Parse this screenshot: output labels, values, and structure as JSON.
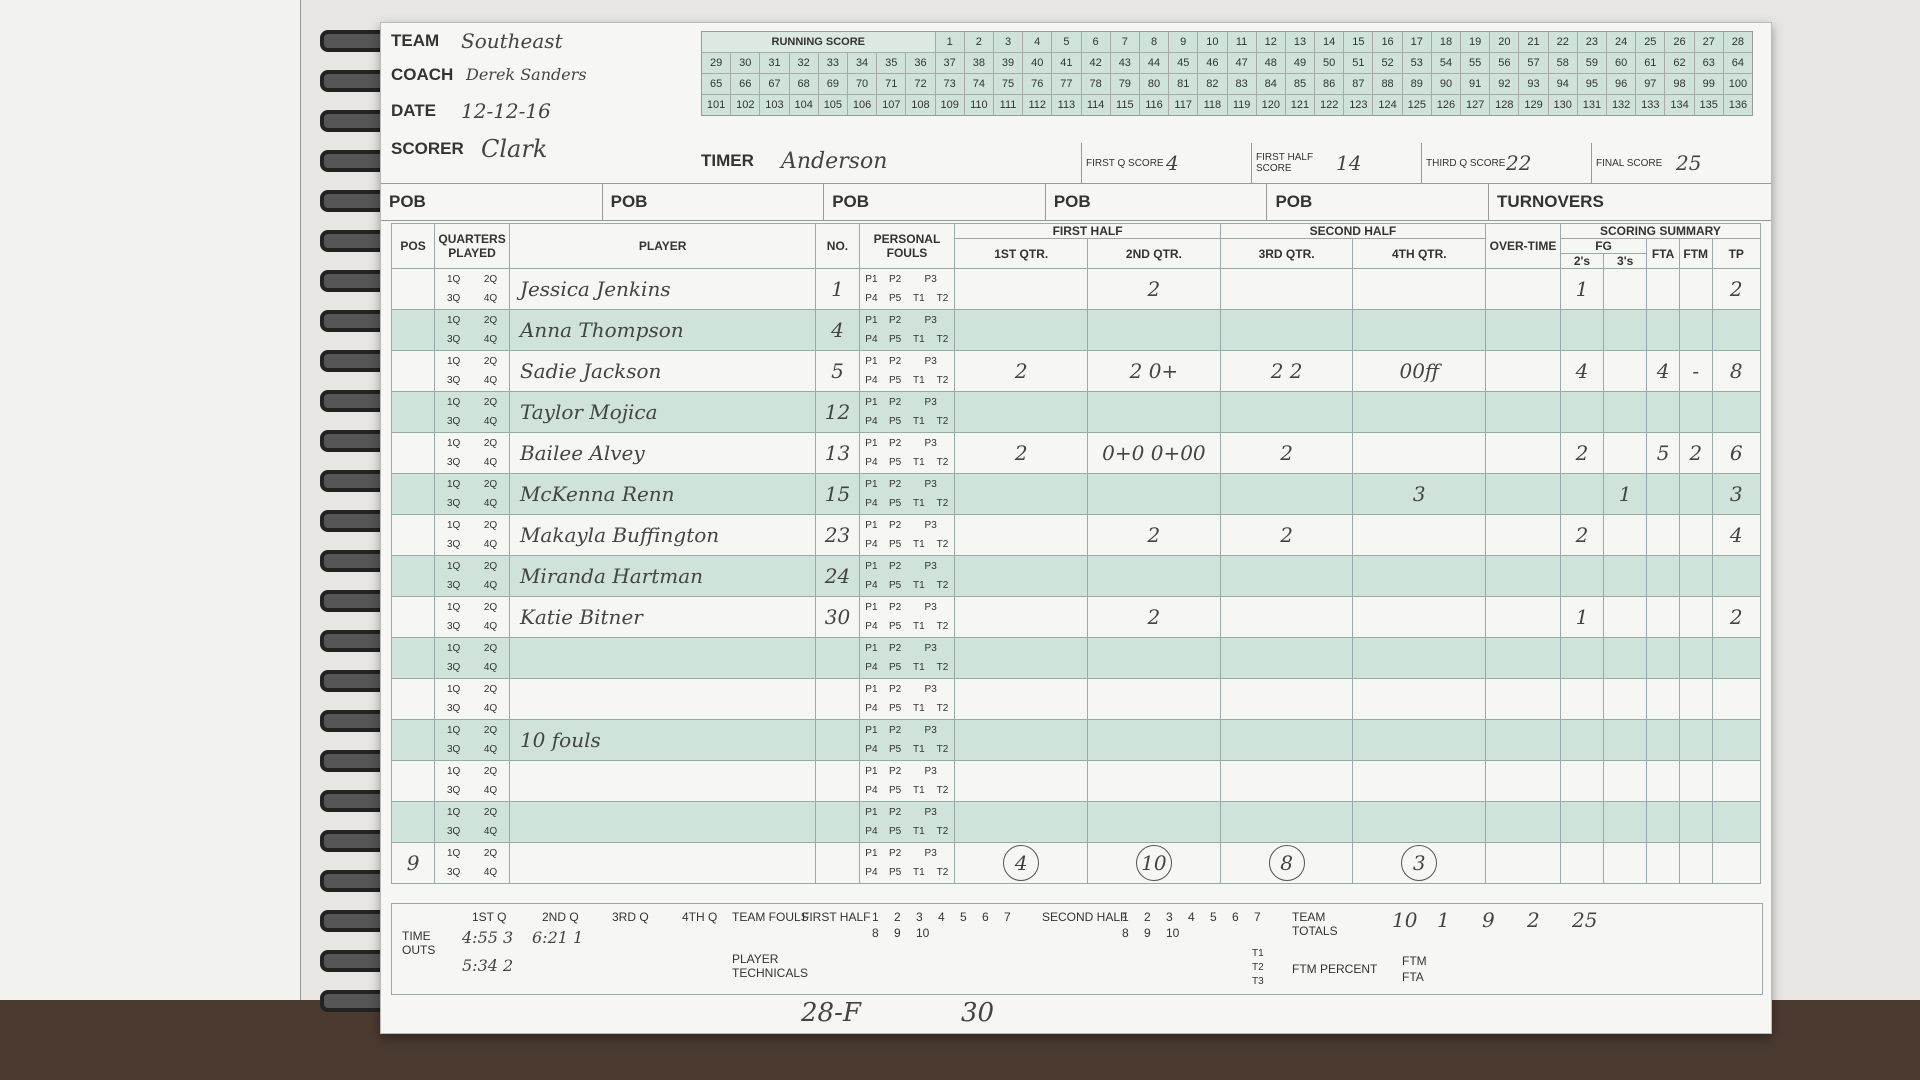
{
  "header": {
    "team_label": "TEAM",
    "team": "Southeast",
    "coach_label": "COACH",
    "coach": "Derek Sanders",
    "date_label": "DATE",
    "date": "12-12-16",
    "scorer_label": "SCORER",
    "scorer": "Clark",
    "timer_label": "TIMER",
    "timer": "Anderson"
  },
  "running_score": {
    "label": "RUNNING SCORE",
    "rows": [
      [
        1,
        2,
        3,
        4,
        5,
        6,
        7,
        8,
        9,
        10,
        11,
        12,
        13,
        14,
        15,
        16,
        17,
        18,
        19,
        20,
        21,
        22,
        23,
        24,
        25,
        26,
        27,
        28
      ],
      [
        29,
        30,
        31,
        32,
        33,
        34,
        35,
        36,
        37,
        38,
        39,
        40,
        41,
        42,
        43,
        44,
        45,
        46,
        47,
        48,
        49,
        50,
        51,
        52,
        53,
        54,
        55,
        56,
        57,
        58,
        59,
        60,
        61,
        62,
        63,
        64
      ],
      [
        65,
        66,
        67,
        68,
        69,
        70,
        71,
        72,
        73,
        74,
        75,
        76,
        77,
        78,
        79,
        80,
        81,
        82,
        83,
        84,
        85,
        86,
        87,
        88,
        89,
        90,
        91,
        92,
        93,
        94,
        95,
        96,
        97,
        98,
        99,
        100
      ],
      [
        101,
        102,
        103,
        104,
        105,
        106,
        107,
        108,
        109,
        110,
        111,
        112,
        113,
        114,
        115,
        116,
        117,
        118,
        119,
        120,
        121,
        122,
        123,
        124,
        125,
        126,
        127,
        128,
        129,
        130,
        131,
        132,
        133,
        134,
        135,
        136
      ]
    ]
  },
  "period_scores": [
    {
      "label": "FIRST Q SCORE",
      "value": "4"
    },
    {
      "label": "FIRST HALF SCORE",
      "value": "14"
    },
    {
      "label": "THIRD Q SCORE",
      "value": "22"
    },
    {
      "label": "FINAL SCORE",
      "value": "25"
    }
  ],
  "pob_labels": [
    "POB",
    "POB",
    "POB",
    "POB",
    "POB"
  ],
  "turnovers_label": "TURNOVERS",
  "table": {
    "headers": {
      "pos": "POS",
      "quarters": "QUARTERS PLAYED",
      "player": "PLAYER",
      "no": "NO.",
      "fouls": "PERSONAL FOULS",
      "first_half": "FIRST HALF",
      "q1": "1ST QTR.",
      "q2": "2ND QTR.",
      "second_half": "SECOND HALF",
      "q3": "3RD QTR.",
      "q4": "4TH QTR.",
      "ot": "OVER-TIME",
      "summary": "SCORING SUMMARY",
      "fg": "FG",
      "twos": "2's",
      "threes": "3's",
      "fta": "FTA",
      "ftm": "FTM",
      "tp": "TP"
    },
    "quarter_labels": [
      "1Q",
      "2Q",
      "3Q",
      "4Q"
    ],
    "foul_labels": [
      "P1",
      "P2",
      "P3",
      "P4",
      "P5",
      "T1",
      "T2"
    ],
    "rows": [
      {
        "player": "Jessica Jenkins",
        "no": "1",
        "q2": "2",
        "twos": "1",
        "tp": "2"
      },
      {
        "player": "Anna Thompson",
        "no": "4"
      },
      {
        "player": "Sadie Jackson",
        "no": "5",
        "q1": "2",
        "q2": "2 0+",
        "q3": "2 2",
        "q4": "00ff",
        "twos": "4",
        "fta": "4",
        "ftm": "-",
        "tp": "8"
      },
      {
        "player": "Taylor Mojica",
        "no": "12"
      },
      {
        "player": "Bailee Alvey",
        "no": "13",
        "q1": "2",
        "q2": "0+0 0+00",
        "q3": "2",
        "twos": "2",
        "fta": "5",
        "ftm": "2",
        "tp": "6"
      },
      {
        "player": "McKenna Renn",
        "no": "15",
        "q4": "3",
        "threes": "1",
        "tp": "3"
      },
      {
        "player": "Makayla Buffington",
        "no": "23",
        "q2": "2",
        "q3": "2",
        "twos": "2",
        "tp": "4"
      },
      {
        "player": "Miranda Hartman",
        "no": "24"
      },
      {
        "player": "Katie Bitner",
        "no": "30",
        "q2": "2",
        "twos": "1",
        "tp": "2"
      }
    ],
    "foul_note": "10 fouls",
    "pos_note": "9",
    "quarter_fouls": [
      "4",
      "10",
      "8",
      "3"
    ]
  },
  "footer": {
    "time_outs": "TIME OUTS",
    "quarters": [
      "1ST Q",
      "2ND Q",
      "3RD Q",
      "4TH Q"
    ],
    "time_out_entries": [
      "4:55 3",
      "6:21 1",
      "5:34 2"
    ],
    "team_fouls": "TEAM FOULS",
    "first_half": "FIRST HALF",
    "second_half": "SECOND HALF",
    "foul_numbers": [
      1,
      2,
      3,
      4,
      5,
      6,
      7,
      8,
      9,
      10
    ],
    "team_totals": "TEAM TOTALS",
    "totals": [
      "10",
      "1",
      "9",
      "2",
      "25"
    ],
    "player_technicals": "PLAYER TECHNICALS",
    "tech_labels": [
      "T1",
      "T2",
      "T3"
    ],
    "ftm_percent": "FTM PERCENT",
    "ftm": "FTM",
    "fta": "FTA",
    "notes": [
      "28-F",
      "30"
    ]
  }
}
